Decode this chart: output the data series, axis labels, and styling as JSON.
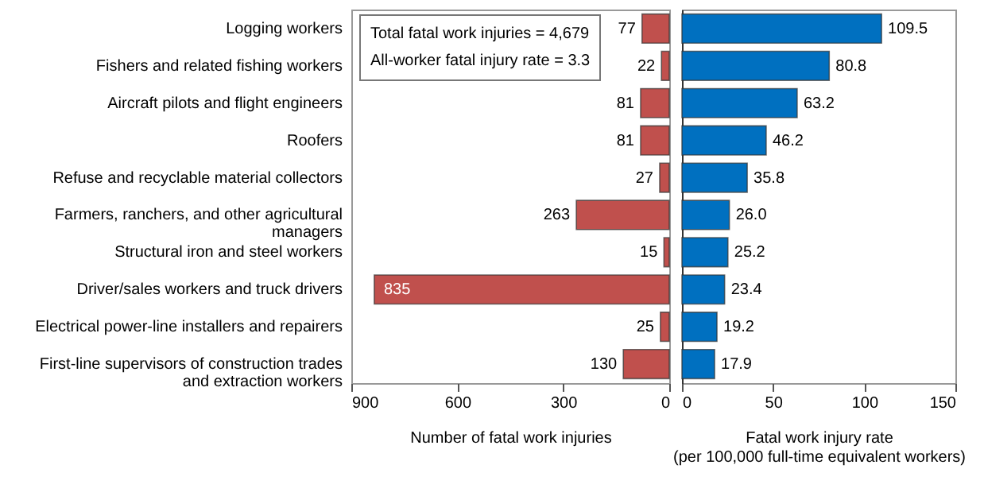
{
  "chart_data": [
    {
      "type": "bar",
      "orientation": "horizontal",
      "xlabel": "Number of fatal work injuries",
      "categories": [
        "Logging workers",
        "Fishers and related fishing workers",
        "Aircraft pilots and flight engineers",
        "Roofers",
        "Refuse and recyclable material collectors",
        "Farmers, ranchers, and other agricultural managers",
        "Structural iron and steel workers",
        "Driver/sales workers and truck drivers",
        "Electrical power-line installers and repairers",
        "First-line supervisors of construction trades and extraction workers"
      ],
      "values": [
        77,
        22,
        81,
        81,
        27,
        263,
        15,
        835,
        25,
        130
      ],
      "value_labels": [
        "77",
        "22",
        "81",
        "81",
        "27",
        "263",
        "15",
        "835",
        "25",
        "130"
      ],
      "color": "#c0504d",
      "xlim": [
        900,
        0
      ],
      "xticks": [
        900,
        600,
        300,
        0
      ],
      "grid": false,
      "annotations": [
        "Total fatal work injuries = 4,679",
        "All-worker fatal injury rate = 3.3"
      ]
    },
    {
      "type": "bar",
      "orientation": "horizontal",
      "xlabel": "Fatal work injury rate (per 100,000 full-time equivalent workers)",
      "categories": [
        null,
        null,
        null,
        null,
        null,
        null,
        null,
        null,
        null,
        null
      ],
      "values": [
        109.5,
        80.8,
        63.2,
        46.2,
        35.8,
        26.0,
        25.2,
        23.4,
        19.2,
        17.9
      ],
      "value_labels": [
        "109.5",
        "80.8",
        "63.2",
        "46.2",
        "35.8",
        "26.0",
        "25.2",
        "23.4",
        "19.2",
        "17.9"
      ],
      "color": "#0070c0",
      "xlim": [
        0,
        150
      ],
      "xticks": [
        0,
        50,
        100,
        150
      ],
      "grid": false,
      "tick_labels": "x"
    }
  ]
}
